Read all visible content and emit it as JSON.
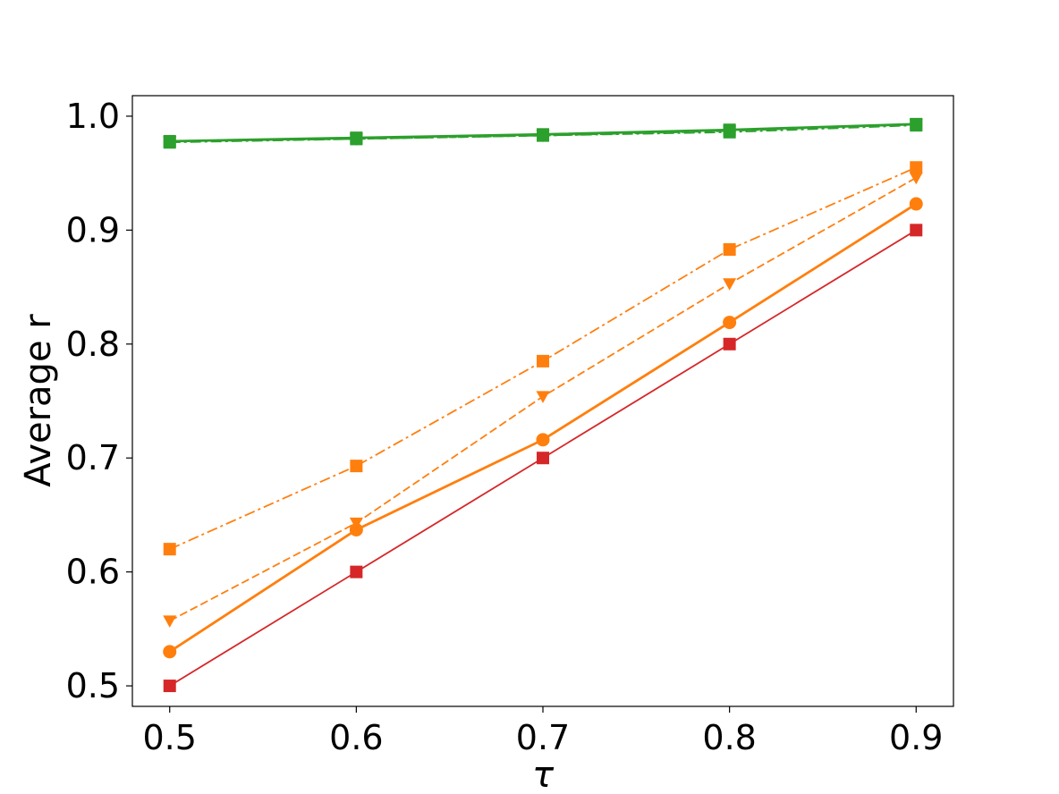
{
  "chart_data": {
    "type": "line",
    "xlabel": "τ",
    "ylabel": "Average r",
    "x": [
      0.5,
      0.6,
      0.7,
      0.8,
      0.9
    ],
    "xticks": [
      "0.5",
      "0.6",
      "0.7",
      "0.8",
      "0.9"
    ],
    "yticks": [
      "0.5",
      "0.6",
      "0.7",
      "0.8",
      "0.9",
      "1.0"
    ],
    "ytick_values": [
      0.5,
      0.6,
      0.7,
      0.8,
      0.9,
      1.0
    ],
    "xlim": [
      0.48,
      0.92
    ],
    "ylim": [
      0.482,
      1.018
    ],
    "grid": false,
    "series": [
      {
        "values": [
          0.5,
          0.6,
          0.7,
          0.8,
          0.9
        ],
        "color": "#d62728",
        "linestyle": "solid",
        "marker": "square",
        "linewidth": "thin"
      },
      {
        "values": [
          0.53,
          0.637,
          0.716,
          0.819,
          0.923
        ],
        "color": "#ff7f0e",
        "linestyle": "solid",
        "marker": "circle",
        "linewidth": "thick"
      },
      {
        "values": [
          0.557,
          0.643,
          0.754,
          0.853,
          0.946
        ],
        "color": "#ff7f0e",
        "linestyle": "dashed",
        "marker": "triangle-down",
        "linewidth": "thin"
      },
      {
        "values": [
          0.62,
          0.693,
          0.785,
          0.883,
          0.955
        ],
        "color": "#ff7f0e",
        "linestyle": "dashdot",
        "marker": "square",
        "linewidth": "thin"
      },
      {
        "values": [
          0.977,
          0.98,
          0.983,
          0.986,
          0.992
        ],
        "color": "#2ca02c",
        "linestyle": "dashdot",
        "marker": "square",
        "linewidth": "thin"
      },
      {
        "values": [
          0.978,
          0.98,
          0.983,
          0.987,
          0.993
        ],
        "color": "#2ca02c",
        "linestyle": "dashed",
        "marker": "triangle-down",
        "linewidth": "thin"
      },
      {
        "values": [
          0.978,
          0.981,
          0.984,
          0.988,
          0.993
        ],
        "color": "#2ca02c",
        "linestyle": "solid",
        "marker": "square",
        "linewidth": "thick"
      }
    ]
  }
}
